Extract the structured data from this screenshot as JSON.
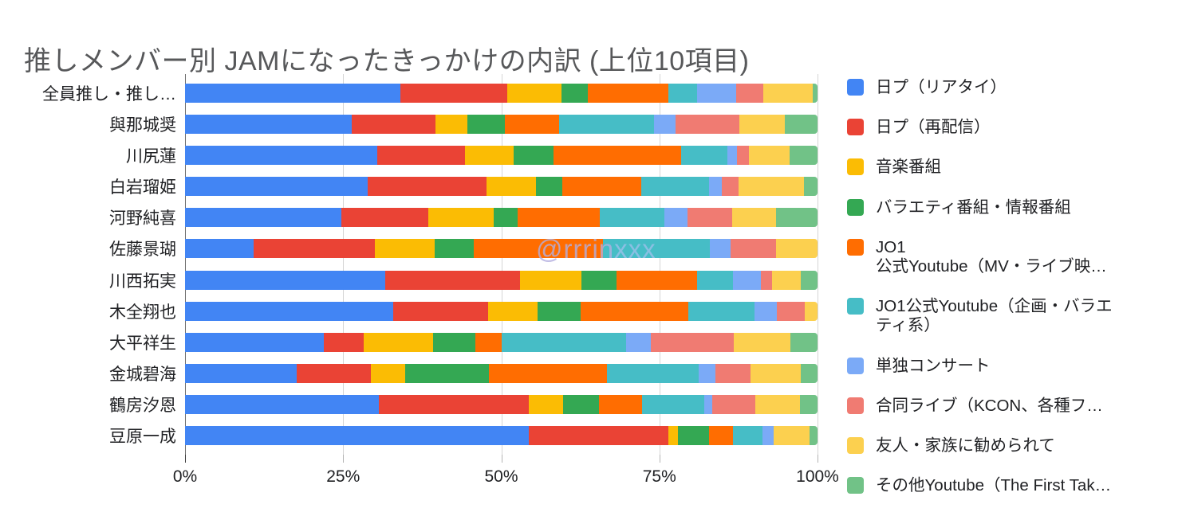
{
  "title": "推しメンバー別 JAMになったきっかけの内訳 (上位10項目)",
  "watermark": {
    "part1": "@rrrin",
    "part2": "xxx",
    "part1_color": "#b4afe0",
    "part2_color": "#9cc0ea"
  },
  "chart_data": {
    "type": "bar",
    "stacked": true,
    "orientation": "horizontal",
    "unit": "percent",
    "xlim": [
      0,
      100
    ],
    "grid": true,
    "legend_position": "right",
    "x_ticks": [
      "0%",
      "25%",
      "50%",
      "75%",
      "100%"
    ],
    "categories": [
      "全員推し・推し…",
      "與那城奨",
      "川尻蓮",
      "白岩瑠姫",
      "河野純喜",
      "佐藤景瑚",
      "川西拓実",
      "木全翔也",
      "大平祥生",
      "金城碧海",
      "鶴房汐恩",
      "豆原一成"
    ],
    "series": [
      {
        "name": "日プ（リアタイ）",
        "color": "#4285F4",
        "values": [
          34.0,
          26.3,
          30.4,
          28.9,
          24.7,
          10.9,
          31.7,
          33.0,
          22.0,
          17.6,
          30.6,
          54.3
        ]
      },
      {
        "name": "日プ（再配信）",
        "color": "#EA4335",
        "values": [
          17.0,
          13.3,
          13.9,
          18.7,
          13.7,
          19.2,
          21.3,
          15.0,
          6.3,
          11.8,
          23.7,
          22.1
        ]
      },
      {
        "name": "音楽番組",
        "color": "#FBBC04",
        "values": [
          8.5,
          5.0,
          7.7,
          7.8,
          10.4,
          9.4,
          9.8,
          7.8,
          10.9,
          5.4,
          5.5,
          1.5
        ]
      },
      {
        "name": "バラエティ番組・情報番組",
        "color": "#34A853",
        "values": [
          4.2,
          6.0,
          6.3,
          4.2,
          3.8,
          6.2,
          5.5,
          6.8,
          6.7,
          13.2,
          5.7,
          5.0
        ]
      },
      {
        "name": "JO1\n公式Youtube（MV・ライブ映…",
        "color": "#FF6D01",
        "values": [
          12.7,
          8.5,
          20.2,
          12.5,
          13.0,
          20.4,
          12.7,
          17.1,
          4.2,
          18.7,
          6.8,
          3.7
        ]
      },
      {
        "name": "JO1公式Youtube（企画・バラエ\nティ系）",
        "color": "#46BDC6",
        "values": [
          4.6,
          15.0,
          7.3,
          10.7,
          10.2,
          17.0,
          5.7,
          10.4,
          19.6,
          14.5,
          9.8,
          4.7
        ]
      },
      {
        "name": "単独コンサート",
        "color": "#7BAAF7",
        "values": [
          6.2,
          3.4,
          1.6,
          2.0,
          3.7,
          3.3,
          4.4,
          3.6,
          3.9,
          2.7,
          1.2,
          1.8
        ]
      },
      {
        "name": "合同ライブ（KCON、各種フ…",
        "color": "#F07B72",
        "values": [
          4.2,
          10.1,
          1.8,
          2.6,
          7.0,
          7.2,
          1.8,
          4.4,
          13.2,
          5.5,
          6.9,
          0.0
        ]
      },
      {
        "name": "友人・家族に勧められて",
        "color": "#FCD04F",
        "values": [
          7.8,
          7.3,
          6.5,
          10.4,
          7.0,
          6.5,
          4.6,
          2.0,
          8.9,
          8.0,
          7.0,
          5.7
        ]
      },
      {
        "name": "その他Youtube（The First Tak…",
        "color": "#71C287",
        "values": [
          0.8,
          5.1,
          4.4,
          2.1,
          6.5,
          0.0,
          2.6,
          0.0,
          4.3,
          2.6,
          2.8,
          1.2
        ]
      }
    ]
  }
}
